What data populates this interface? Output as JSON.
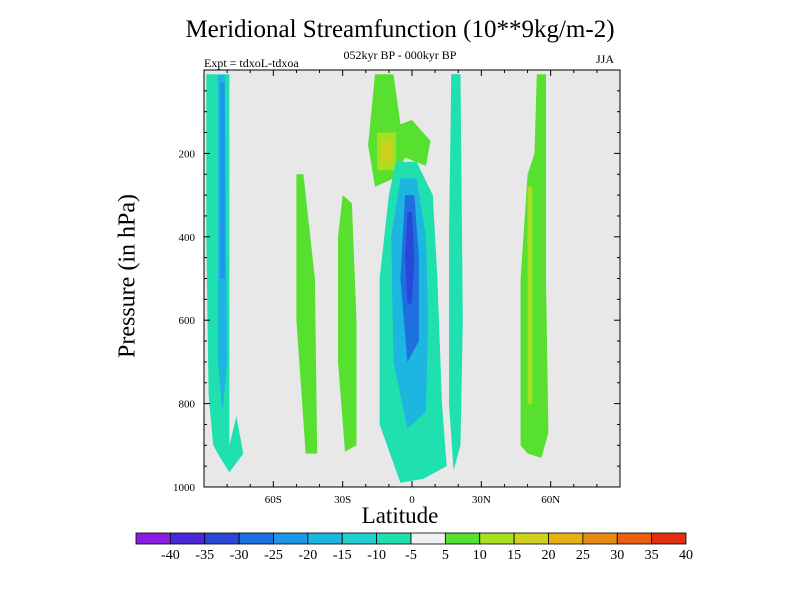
{
  "chart_data": {
    "type": "heatmap",
    "title": "Meridional Streamfunction (10**9kg/m-2)",
    "subtitle": "052kyr BP - 000kyr BP",
    "experiment": "Expt = tdxoL-tdxoa",
    "season": "JJA",
    "xlabel": "Latitude",
    "ylabel": "Pressure (in hPa)",
    "xlim": [
      -90,
      90
    ],
    "ylim": [
      1000,
      0
    ],
    "x_ticks": [
      {
        "value": -60,
        "label": "60S"
      },
      {
        "value": -30,
        "label": "30S"
      },
      {
        "value": 0,
        "label": "0"
      },
      {
        "value": 30,
        "label": "30N"
      },
      {
        "value": 60,
        "label": "60N"
      }
    ],
    "y_ticks": [
      {
        "value": 200,
        "label": "200"
      },
      {
        "value": 400,
        "label": "400"
      },
      {
        "value": 600,
        "label": "600"
      },
      {
        "value": 800,
        "label": "800"
      },
      {
        "value": 1000,
        "label": "1000"
      }
    ],
    "background_color": "#e8e8e8",
    "colorbar": {
      "labels": [
        "-40",
        "-35",
        "-30",
        "-25",
        "-20",
        "-15",
        "-10",
        "-5",
        "5",
        "10",
        "15",
        "20",
        "25",
        "30",
        "35",
        "40"
      ],
      "colors": [
        "#8a1ee0",
        "#4a2ad8",
        "#2a48d8",
        "#1e6fe0",
        "#1e96e6",
        "#1cb6e0",
        "#20d0d0",
        "#20e0b0",
        "#f0f0f0",
        "#58e030",
        "#a8e020",
        "#d0d020",
        "#e6b010",
        "#e68a10",
        "#e86010",
        "#e03010"
      ]
    },
    "features": [
      {
        "name": "60S column",
        "value": -10,
        "color": "#20e0b0",
        "points": [
          [
            -89,
            10
          ],
          [
            -79,
            10
          ],
          [
            -79,
            900
          ],
          [
            -76,
            830
          ],
          [
            -73,
            920
          ],
          [
            -79,
            965
          ],
          [
            -83,
            930
          ],
          [
            -86,
            900
          ],
          [
            -88,
            780
          ],
          [
            -89,
            400
          ]
        ]
      },
      {
        "name": "60S column core",
        "value": -15,
        "color": "#1cb6e0",
        "points": [
          [
            -84,
            12
          ],
          [
            -81,
            12
          ],
          [
            -80,
            700
          ],
          [
            -82,
            820
          ],
          [
            -84,
            700
          ]
        ]
      },
      {
        "name": "60S column inner",
        "value": -20,
        "color": "#1e96e6",
        "points": [
          [
            -83,
            30
          ],
          [
            -81,
            30
          ],
          [
            -81,
            500
          ],
          [
            -83,
            500
          ]
        ]
      },
      {
        "name": "45S column",
        "value": 5,
        "color": "#58e030",
        "points": [
          [
            -50,
            250
          ],
          [
            -47,
            250
          ],
          [
            -42,
            500
          ],
          [
            -41,
            920
          ],
          [
            -46,
            920
          ],
          [
            -50,
            600
          ]
        ]
      },
      {
        "name": "30S column",
        "value": 5,
        "color": "#58e030",
        "points": [
          [
            -30,
            300
          ],
          [
            -26,
            320
          ],
          [
            -24,
            600
          ],
          [
            -24,
            900
          ],
          [
            -29,
            915
          ],
          [
            -32,
            700
          ],
          [
            -32,
            400
          ]
        ]
      },
      {
        "name": "equatorial upper",
        "value": 5,
        "color": "#58e030",
        "points": [
          [
            -16,
            10
          ],
          [
            -8,
            10
          ],
          [
            -5,
            130
          ],
          [
            0,
            120
          ],
          [
            8,
            170
          ],
          [
            6,
            230
          ],
          [
            -3,
            210
          ],
          [
            -8,
            260
          ],
          [
            -16,
            280
          ],
          [
            -19,
            180
          ]
        ]
      },
      {
        "name": "equatorial upper core",
        "value": 15,
        "color": "#a8e020",
        "points": [
          [
            -15,
            150
          ],
          [
            -7,
            150
          ],
          [
            -7,
            240
          ],
          [
            -15,
            240
          ]
        ]
      },
      {
        "name": "equatorial upper peak",
        "value": 20,
        "color": "#d0d020",
        "points": [
          [
            -13,
            170
          ],
          [
            -9,
            170
          ],
          [
            -9,
            220
          ],
          [
            -13,
            220
          ]
        ]
      },
      {
        "name": "equator deep",
        "value": -10,
        "color": "#20e0b0",
        "points": [
          [
            -7,
            220
          ],
          [
            2,
            220
          ],
          [
            9,
            300
          ],
          [
            11,
            500
          ],
          [
            13,
            800
          ],
          [
            15,
            950
          ],
          [
            5,
            980
          ],
          [
            -5,
            990
          ],
          [
            -14,
            850
          ],
          [
            -14,
            500
          ],
          [
            -10,
            300
          ]
        ]
      },
      {
        "name": "equator deep core",
        "value": -15,
        "color": "#1cb6e0",
        "points": [
          [
            -5,
            260
          ],
          [
            2,
            260
          ],
          [
            6,
            400
          ],
          [
            7,
            600
          ],
          [
            6,
            820
          ],
          [
            -2,
            860
          ],
          [
            -8,
            700
          ],
          [
            -9,
            400
          ]
        ]
      },
      {
        "name": "equator deep inner",
        "value": -25,
        "color": "#1e6fe0",
        "points": [
          [
            -3,
            300
          ],
          [
            1,
            300
          ],
          [
            3,
            450
          ],
          [
            3,
            650
          ],
          [
            -2,
            700
          ],
          [
            -5,
            500
          ]
        ]
      },
      {
        "name": "equator deep peak",
        "value": -35,
        "color": "#2a48d8",
        "points": [
          [
            -2,
            340
          ],
          [
            0,
            340
          ],
          [
            1,
            450
          ],
          [
            0,
            560
          ],
          [
            -2,
            560
          ],
          [
            -3,
            450
          ]
        ]
      },
      {
        "name": "20N column",
        "value": -10,
        "color": "#20e0b0",
        "points": [
          [
            17,
            10
          ],
          [
            21,
            10
          ],
          [
            22,
            600
          ],
          [
            21,
            900
          ],
          [
            18,
            960
          ],
          [
            16,
            800
          ],
          [
            16,
            400
          ]
        ]
      },
      {
        "name": "20N upper",
        "value": -5,
        "color": "#20e0b0",
        "points": [
          [
            17,
            10
          ],
          [
            20,
            10
          ],
          [
            20,
            250
          ],
          [
            17,
            250
          ]
        ]
      },
      {
        "name": "60N column",
        "value": 5,
        "color": "#58e030",
        "points": [
          [
            54,
            10
          ],
          [
            58,
            10
          ],
          [
            58,
            500
          ],
          [
            59,
            870
          ],
          [
            56,
            930
          ],
          [
            50,
            920
          ],
          [
            47,
            900
          ],
          [
            47,
            500
          ],
          [
            50,
            250
          ],
          [
            53,
            200
          ]
        ]
      },
      {
        "name": "60N column core",
        "value": 10,
        "color": "#a8e020",
        "points": [
          [
            50,
            280
          ],
          [
            52,
            280
          ],
          [
            52,
            800
          ],
          [
            50,
            800
          ]
        ]
      }
    ]
  }
}
